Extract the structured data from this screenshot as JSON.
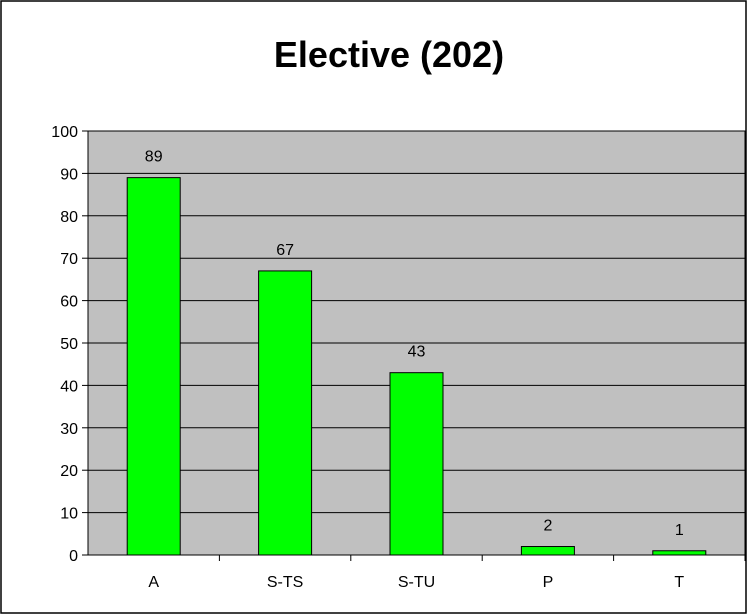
{
  "chart_data": {
    "type": "bar",
    "title": "Elective (202)",
    "categories": [
      "A",
      "S-TS",
      "S-TU",
      "P",
      "T"
    ],
    "values": [
      89,
      67,
      43,
      2,
      1
    ],
    "data_labels": [
      "89",
      "67",
      "43",
      "2",
      "1"
    ],
    "xlabel": "",
    "ylabel": "",
    "ylim": [
      0,
      100
    ],
    "yticks": [
      "0",
      "10",
      "20",
      "30",
      "40",
      "50",
      "60",
      "70",
      "80",
      "90",
      "100"
    ],
    "grid": true,
    "legend": "none",
    "colors": {
      "bar": "#00ff00",
      "plot_background": "#c0c0c0",
      "gridline": "#000000",
      "border": "#000000"
    }
  }
}
